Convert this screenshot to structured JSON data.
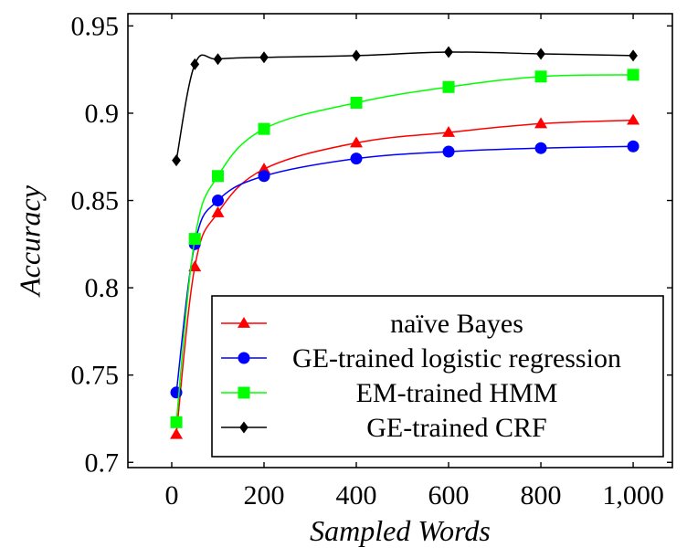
{
  "chart_data": {
    "type": "line",
    "title": "",
    "xlabel": "Sampled Words",
    "ylabel": "Accuracy",
    "xlim": [
      -95,
      1085
    ],
    "ylim": [
      0.697,
      0.957
    ],
    "xticks": [
      0,
      200,
      400,
      600,
      800,
      1000
    ],
    "xtick_labels": [
      "0",
      "200",
      "400",
      "600",
      "800",
      "1,000"
    ],
    "yticks": [
      0.7,
      0.75,
      0.8,
      0.85,
      0.9,
      0.95
    ],
    "ytick_labels": [
      "0.7",
      "0.75",
      "0.8",
      "0.85",
      "0.9",
      "0.95"
    ],
    "grid": false,
    "legend_position": "bottom-right",
    "series": [
      {
        "name": "naïve Bayes",
        "color": "#ff0000",
        "marker": "triangle",
        "x": [
          10,
          50,
          100,
          200,
          400,
          600,
          800,
          1000
        ],
        "y": [
          0.716,
          0.812,
          0.843,
          0.868,
          0.883,
          0.889,
          0.894,
          0.896
        ]
      },
      {
        "name": "GE-trained logistic regression",
        "color": "#0000ff",
        "marker": "circle",
        "x": [
          10,
          50,
          100,
          200,
          400,
          600,
          800,
          1000
        ],
        "y": [
          0.74,
          0.825,
          0.85,
          0.864,
          0.874,
          0.878,
          0.88,
          0.881
        ]
      },
      {
        "name": "EM-trained HMM",
        "color": "#00ff00",
        "marker": "square",
        "x": [
          10,
          50,
          100,
          200,
          400,
          600,
          800,
          1000
        ],
        "y": [
          0.723,
          0.828,
          0.864,
          0.891,
          0.906,
          0.915,
          0.921,
          0.922
        ]
      },
      {
        "name": "GE-trained CRF",
        "color": "#000000",
        "marker": "diamond",
        "x": [
          10,
          50,
          100,
          200,
          400,
          600,
          800,
          1000
        ],
        "y": [
          0.873,
          0.928,
          0.931,
          0.932,
          0.933,
          0.935,
          0.934,
          0.933
        ]
      }
    ]
  }
}
